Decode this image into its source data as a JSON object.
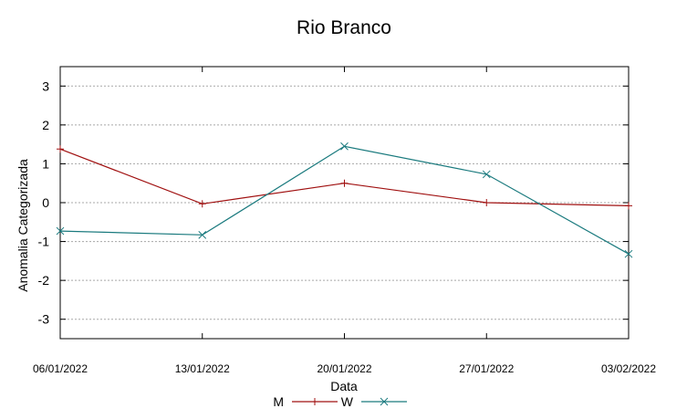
{
  "chart_data": {
    "type": "line",
    "title": "Rio Branco",
    "xlabel": "Data",
    "ylabel": "Anomalia Categorizada",
    "categories": [
      "06/01/2022",
      "13/01/2022",
      "20/01/2022",
      "27/01/2022",
      "03/02/2022"
    ],
    "yticks": [
      "3",
      "2",
      "1",
      "0",
      "-1",
      "-2",
      "-3"
    ],
    "ylim": [
      -3.5,
      3.5
    ],
    "grid": true,
    "legend_position": "bottom",
    "series": [
      {
        "name": "M",
        "color": "#a01010",
        "marker": "plus",
        "values": [
          1.38,
          -0.03,
          0.5,
          0.0,
          -0.08
        ]
      },
      {
        "name": "W",
        "color": "#1a7a7e",
        "marker": "cross",
        "values": [
          -0.73,
          -0.83,
          1.45,
          0.73,
          -1.32
        ]
      }
    ]
  }
}
